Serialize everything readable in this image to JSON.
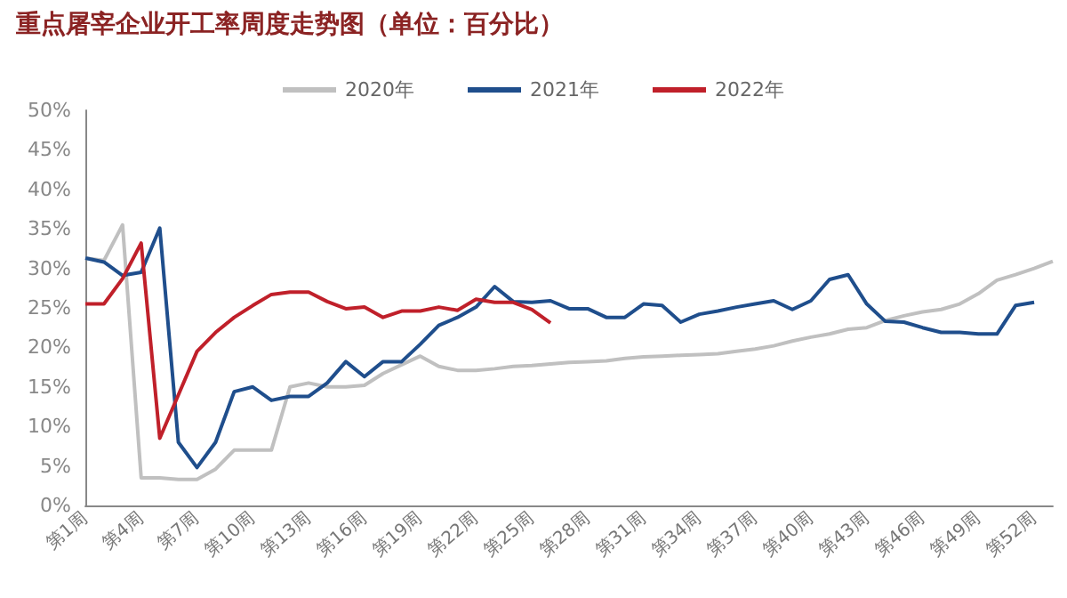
{
  "chart_data": {
    "type": "line",
    "title": "重点屠宰企业开工率周度走势图（单位：百分比）",
    "categories": [
      "第1周",
      null,
      null,
      "第4周",
      null,
      null,
      "第7周",
      null,
      null,
      "第10周",
      null,
      null,
      "第13周",
      null,
      null,
      "第16周",
      null,
      null,
      "第19周",
      null,
      null,
      "第22周",
      null,
      null,
      "第25周",
      null,
      null,
      "第28周",
      null,
      null,
      "第31周",
      null,
      null,
      "第34周",
      null,
      null,
      "第37周",
      null,
      null,
      "第40周",
      null,
      null,
      "第43周",
      null,
      null,
      "第46周",
      null,
      null,
      "第49周",
      null,
      null,
      "第52周",
      null
    ],
    "series": [
      {
        "name": "2020年",
        "color": "#c0c0c0",
        "values": [
          31.3,
          31,
          35.5,
          3.5,
          3.5,
          3.3,
          3.3,
          4.6,
          7,
          7,
          7,
          15,
          15.5,
          15,
          15,
          15.2,
          16.7,
          17.8,
          18.9,
          17.6,
          17.1,
          17.1,
          17.3,
          17.6,
          17.7,
          17.9,
          18.1,
          18.2,
          18.3,
          18.6,
          18.8,
          18.9,
          19,
          19.1,
          19.2,
          19.5,
          19.8,
          20.2,
          20.8,
          21.3,
          21.7,
          22.3,
          22.5,
          23.4,
          24,
          24.5,
          24.8,
          25.5,
          26.8,
          28.5,
          29.2,
          30,
          30.9
        ]
      },
      {
        "name": "2021年",
        "color": "#1f4e8c",
        "values": [
          31.3,
          30.8,
          29.1,
          29.5,
          35.1,
          8,
          4.8,
          8,
          14.4,
          15,
          13.3,
          13.8,
          13.8,
          15.5,
          18.2,
          16.3,
          18.2,
          18.2,
          20.4,
          22.8,
          23.8,
          25.1,
          27.7,
          25.8,
          25.7,
          25.9,
          24.9,
          24.9,
          23.8,
          23.8,
          25.5,
          25.3,
          23.2,
          24.2,
          24.6,
          25.1,
          25.5,
          25.9,
          24.8,
          25.9,
          28.6,
          29.2,
          25.5,
          23.3,
          23.2,
          22.5,
          21.9,
          21.9,
          21.7,
          21.7,
          25.3,
          25.7,
          null
        ]
      },
      {
        "name": "2022年",
        "color": "#c0202a",
        "values": [
          25.5,
          25.5,
          28.7,
          33.2,
          8.5,
          14,
          19.5,
          21.9,
          23.8,
          25.3,
          26.7,
          27,
          27,
          25.8,
          24.9,
          25.1,
          23.8,
          24.6,
          24.6,
          25.1,
          24.7,
          26.1,
          25.7,
          25.7,
          24.8,
          23.1,
          null,
          null,
          null,
          null,
          null,
          null,
          null,
          null,
          null,
          null,
          null,
          null,
          null,
          null,
          null,
          null,
          null,
          null,
          null,
          null,
          null,
          null,
          null,
          null,
          null,
          null,
          null
        ]
      }
    ],
    "ylim": [
      0,
      50
    ],
    "yticks": [
      {
        "value": 0,
        "label": "0%"
      },
      {
        "value": 5,
        "label": "5%"
      },
      {
        "value": 10,
        "label": "10%"
      },
      {
        "value": 15,
        "label": "15%"
      },
      {
        "value": 20,
        "label": "20%"
      },
      {
        "value": 25,
        "label": "25%"
      },
      {
        "value": 30,
        "label": "30%"
      },
      {
        "value": 35,
        "label": "35%"
      },
      {
        "value": 40,
        "label": "40%"
      },
      {
        "value": 45,
        "label": "45%"
      },
      {
        "value": 50,
        "label": "50%"
      }
    ],
    "grid": false,
    "legend": "top",
    "marker": "none",
    "line_style": "solid"
  }
}
